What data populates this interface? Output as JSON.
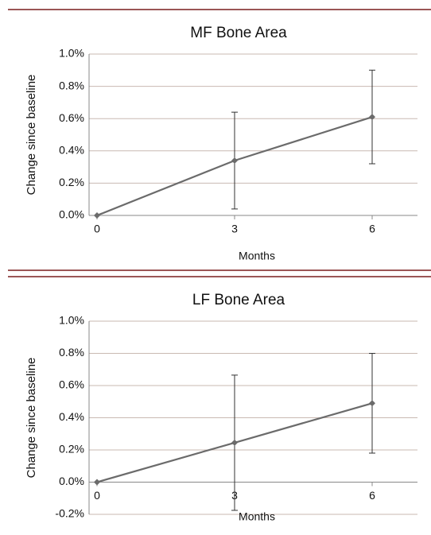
{
  "chart_data": [
    {
      "type": "line",
      "title": "MF Bone Area",
      "x_label": "Months",
      "y_label": "Change since baseline",
      "categories": [
        "0",
        "3",
        "6"
      ],
      "series": [
        {
          "values": [
            0,
            0.34,
            0.61
          ],
          "errors": [
            null,
            0.3,
            0.29
          ],
          "color": "#6b6b6b"
        }
      ],
      "ylim": [
        0,
        1.0
      ],
      "yticks": [
        {
          "value": 0,
          "label": "0.0%"
        },
        {
          "value": 0.2,
          "label": "0.2%"
        },
        {
          "value": 0.4,
          "label": "0.4%"
        },
        {
          "value": 0.6,
          "label": "0.6%"
        },
        {
          "value": 0.8,
          "label": "0.8%"
        },
        {
          "value": 1.0,
          "label": "1.0%"
        }
      ],
      "grid": true
    },
    {
      "type": "line",
      "title": "LF Bone Area",
      "x_label": "Months",
      "y_label": "Change since baseline",
      "categories": [
        "0",
        "3",
        "6"
      ],
      "series": [
        {
          "values": [
            0,
            0.245,
            0.49
          ],
          "errors": [
            null,
            0.42,
            0.31
          ],
          "color": "#6b6b6b"
        }
      ],
      "ylim": [
        -0.2,
        1.0
      ],
      "yticks": [
        {
          "value": -0.2,
          "label": "-0.2%"
        },
        {
          "value": 0,
          "label": "0.0%"
        },
        {
          "value": 0.2,
          "label": "0.2%"
        },
        {
          "value": 0.4,
          "label": "0.4%"
        },
        {
          "value": 0.6,
          "label": "0.6%"
        },
        {
          "value": 0.8,
          "label": "0.8%"
        },
        {
          "value": 1.0,
          "label": "1.0%"
        }
      ],
      "grid": true
    }
  ]
}
